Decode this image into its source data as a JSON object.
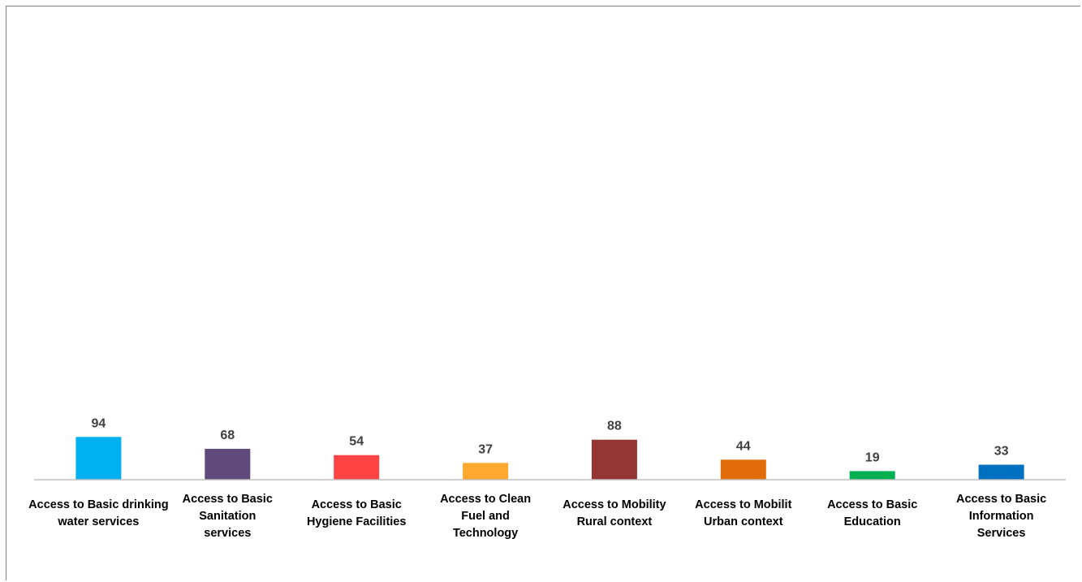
{
  "chart_data": {
    "type": "bar",
    "categories": [
      [
        "Access to Basic drinking",
        "water services"
      ],
      [
        "Access to Basic",
        "Sanitation",
        "services"
      ],
      [
        "Access to Basic",
        "Hygiene Facilities"
      ],
      [
        "Access to Clean",
        "Fuel and",
        "Technology"
      ],
      [
        "Access to Mobility",
        "Rural context"
      ],
      [
        "Access to Mobilit",
        "Urban context"
      ],
      [
        "Access to Basic",
        "Education"
      ],
      [
        "Access to Basic",
        "Information",
        "Services"
      ]
    ],
    "values": [
      94,
      68,
      54,
      37,
      88,
      44,
      19,
      33
    ],
    "colors": [
      "#00b0f0",
      "#604a7b",
      "#ff4343",
      "#ffa82f",
      "#943634",
      "#e36c0a",
      "#00b050",
      "#0070c0"
    ],
    "title": "",
    "xlabel": "",
    "ylabel": "",
    "ylim": [
      0,
      100
    ],
    "grid": false,
    "legend": "none",
    "data_labels": true
  }
}
